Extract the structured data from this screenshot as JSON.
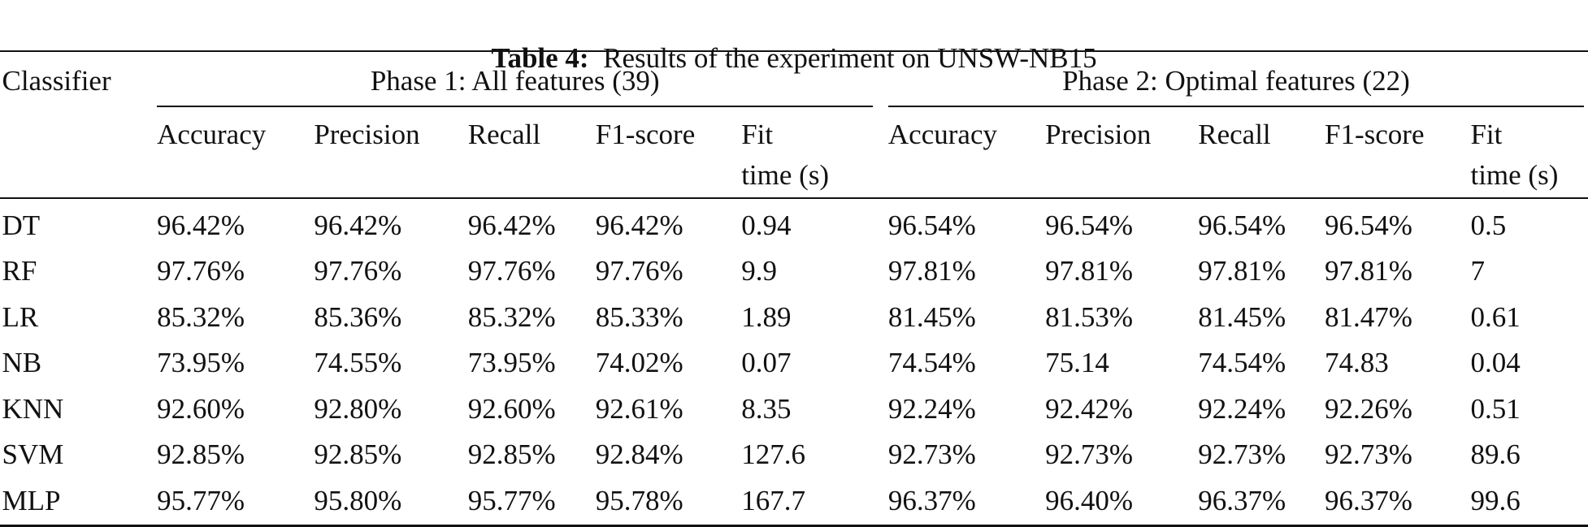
{
  "title": {
    "label": "Table 4:",
    "text": "Results of the experiment on UNSW-NB15"
  },
  "table": {
    "header": {
      "classifier": "Classifier",
      "groups": [
        "Phase 1: All features (39)",
        "Phase 2: Optimal features (22)"
      ],
      "columns": [
        [
          "Accuracy",
          "Precision",
          "Recall",
          "F1-score",
          "Fit\ntime (s)"
        ],
        [
          "Accuracy",
          "Precision",
          "Recall",
          "F1-score",
          "Fit\ntime (s)"
        ]
      ]
    },
    "rows": [
      [
        "DT",
        "96.42%",
        "96.42%",
        "96.42%",
        "96.42%",
        "0.94",
        "96.54%",
        "96.54%",
        "96.54%",
        "96.54%",
        "0.5"
      ],
      [
        "RF",
        "97.76%",
        "97.76%",
        "97.76%",
        "97.76%",
        "9.9",
        "97.81%",
        "97.81%",
        "97.81%",
        "97.81%",
        "7"
      ],
      [
        "LR",
        "85.32%",
        "85.36%",
        "85.32%",
        "85.33%",
        "1.89",
        "81.45%",
        "81.53%",
        "81.45%",
        "81.47%",
        "0.61"
      ],
      [
        "NB",
        "73.95%",
        "74.55%",
        "73.95%",
        "74.02%",
        "0.07",
        "74.54%",
        "75.14",
        "74.54%",
        "74.83",
        "0.04"
      ],
      [
        "KNN",
        "92.60%",
        "92.80%",
        "92.60%",
        "92.61%",
        "8.35",
        "92.24%",
        "92.42%",
        "92.24%",
        "92.26%",
        "0.51"
      ],
      [
        "SVM",
        "92.85%",
        "92.85%",
        "92.85%",
        "92.84%",
        "127.6",
        "92.73%",
        "92.73%",
        "92.73%",
        "92.73%",
        "89.6"
      ],
      [
        "MLP",
        "95.77%",
        "95.80%",
        "95.77%",
        "95.78%",
        "167.7",
        "96.37%",
        "96.40%",
        "96.37%",
        "96.37%",
        "99.6"
      ]
    ]
  }
}
